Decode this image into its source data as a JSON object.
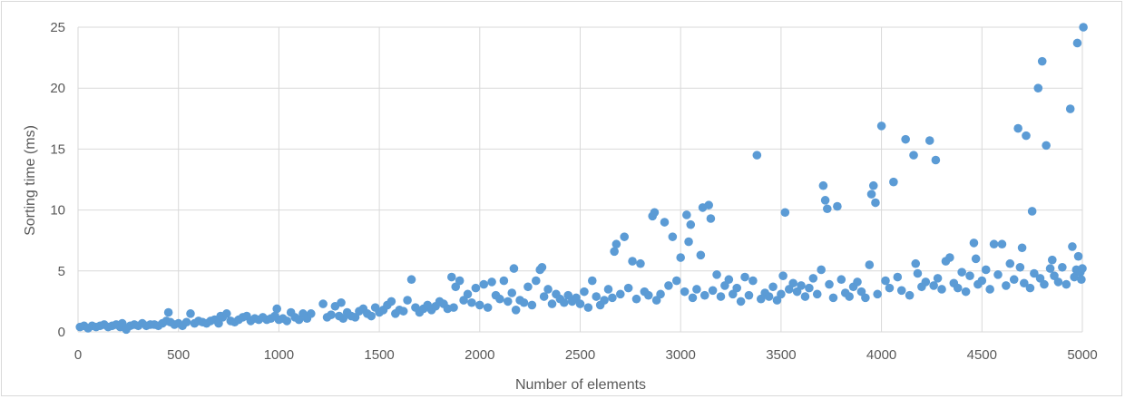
{
  "chart_data": {
    "type": "scatter",
    "title": "",
    "xlabel": "Number of elements",
    "ylabel": "Sorting time (ms)",
    "xlim": [
      0,
      5000
    ],
    "ylim": [
      0,
      25
    ],
    "x_ticks": [
      0,
      500,
      1000,
      1500,
      2000,
      2500,
      3000,
      3500,
      4000,
      4500,
      5000
    ],
    "y_ticks": [
      0,
      5,
      10,
      15,
      20,
      25
    ],
    "x_tick_labels": [
      "0",
      "500",
      "1000",
      "1500",
      "2000",
      "2500",
      "3000",
      "3500",
      "4000",
      "4500",
      "5000"
    ],
    "y_tick_labels": [
      "0",
      "5",
      "10",
      "15",
      "20",
      "25"
    ],
    "grid": true,
    "legend": "none",
    "marker_color": "#5b9bd5",
    "grid_color": "#d9d9d9",
    "series": [
      {
        "points": [
          [
            10,
            0.4
          ],
          [
            30,
            0.5
          ],
          [
            50,
            0.3
          ],
          [
            70,
            0.5
          ],
          [
            90,
            0.4
          ],
          [
            110,
            0.5
          ],
          [
            130,
            0.6
          ],
          [
            150,
            0.4
          ],
          [
            170,
            0.5
          ],
          [
            190,
            0.6
          ],
          [
            210,
            0.4
          ],
          [
            220,
            0.7
          ],
          [
            240,
            0.2
          ],
          [
            260,
            0.5
          ],
          [
            280,
            0.6
          ],
          [
            300,
            0.5
          ],
          [
            320,
            0.7
          ],
          [
            340,
            0.5
          ],
          [
            360,
            0.6
          ],
          [
            380,
            0.6
          ],
          [
            400,
            0.5
          ],
          [
            420,
            0.7
          ],
          [
            440,
            0.9
          ],
          [
            450,
            1.6
          ],
          [
            460,
            0.8
          ],
          [
            480,
            0.6
          ],
          [
            500,
            0.7
          ],
          [
            520,
            0.5
          ],
          [
            540,
            0.8
          ],
          [
            560,
            1.5
          ],
          [
            580,
            0.7
          ],
          [
            600,
            0.9
          ],
          [
            620,
            0.8
          ],
          [
            640,
            0.7
          ],
          [
            660,
            0.9
          ],
          [
            680,
            1.0
          ],
          [
            700,
            0.7
          ],
          [
            710,
            1.3
          ],
          [
            720,
            1.2
          ],
          [
            740,
            1.5
          ],
          [
            760,
            0.9
          ],
          [
            780,
            0.8
          ],
          [
            800,
            1.0
          ],
          [
            820,
            1.2
          ],
          [
            840,
            1.3
          ],
          [
            860,
            0.9
          ],
          [
            880,
            1.1
          ],
          [
            900,
            1.0
          ],
          [
            920,
            1.2
          ],
          [
            940,
            1.0
          ],
          [
            960,
            1.1
          ],
          [
            980,
            1.3
          ],
          [
            990,
            1.9
          ],
          [
            1000,
            1.0
          ],
          [
            1020,
            1.1
          ],
          [
            1040,
            0.9
          ],
          [
            1060,
            1.6
          ],
          [
            1080,
            1.2
          ],
          [
            1100,
            1.0
          ],
          [
            1120,
            1.5
          ],
          [
            1140,
            1.1
          ],
          [
            1160,
            1.5
          ],
          [
            1220,
            2.3
          ],
          [
            1240,
            1.2
          ],
          [
            1260,
            1.4
          ],
          [
            1280,
            2.1
          ],
          [
            1300,
            1.3
          ],
          [
            1310,
            2.4
          ],
          [
            1320,
            1.1
          ],
          [
            1340,
            1.6
          ],
          [
            1360,
            1.3
          ],
          [
            1380,
            1.2
          ],
          [
            1400,
            1.7
          ],
          [
            1420,
            1.9
          ],
          [
            1440,
            1.5
          ],
          [
            1460,
            1.3
          ],
          [
            1480,
            2.0
          ],
          [
            1500,
            1.6
          ],
          [
            1520,
            1.8
          ],
          [
            1540,
            2.2
          ],
          [
            1560,
            2.5
          ],
          [
            1580,
            1.5
          ],
          [
            1600,
            1.8
          ],
          [
            1620,
            1.7
          ],
          [
            1640,
            2.6
          ],
          [
            1660,
            4.3
          ],
          [
            1680,
            2.0
          ],
          [
            1700,
            1.6
          ],
          [
            1720,
            1.9
          ],
          [
            1740,
            2.2
          ],
          [
            1760,
            1.8
          ],
          [
            1780,
            2.1
          ],
          [
            1800,
            2.5
          ],
          [
            1820,
            2.3
          ],
          [
            1840,
            1.9
          ],
          [
            1860,
            4.5
          ],
          [
            1870,
            2.0
          ],
          [
            1880,
            3.7
          ],
          [
            1900,
            4.2
          ],
          [
            1920,
            2.6
          ],
          [
            1940,
            3.1
          ],
          [
            1960,
            2.4
          ],
          [
            1980,
            3.6
          ],
          [
            2000,
            2.2
          ],
          [
            2020,
            3.9
          ],
          [
            2040,
            2.0
          ],
          [
            2060,
            4.1
          ],
          [
            2080,
            3.0
          ],
          [
            2100,
            2.7
          ],
          [
            2120,
            4.2
          ],
          [
            2140,
            2.5
          ],
          [
            2160,
            3.2
          ],
          [
            2170,
            5.2
          ],
          [
            2180,
            1.8
          ],
          [
            2200,
            2.6
          ],
          [
            2220,
            2.4
          ],
          [
            2240,
            3.7
          ],
          [
            2260,
            2.2
          ],
          [
            2280,
            4.2
          ],
          [
            2300,
            5.1
          ],
          [
            2310,
            5.3
          ],
          [
            2320,
            2.9
          ],
          [
            2340,
            3.5
          ],
          [
            2360,
            2.3
          ],
          [
            2380,
            3.1
          ],
          [
            2400,
            2.7
          ],
          [
            2420,
            2.4
          ],
          [
            2440,
            3.0
          ],
          [
            2460,
            2.5
          ],
          [
            2480,
            2.8
          ],
          [
            2500,
            2.3
          ],
          [
            2520,
            3.3
          ],
          [
            2540,
            2.0
          ],
          [
            2560,
            4.2
          ],
          [
            2580,
            2.9
          ],
          [
            2600,
            2.2
          ],
          [
            2620,
            2.6
          ],
          [
            2640,
            3.5
          ],
          [
            2660,
            2.8
          ],
          [
            2670,
            6.6
          ],
          [
            2680,
            7.2
          ],
          [
            2700,
            3.1
          ],
          [
            2720,
            7.8
          ],
          [
            2740,
            3.6
          ],
          [
            2760,
            5.8
          ],
          [
            2780,
            2.7
          ],
          [
            2800,
            5.6
          ],
          [
            2820,
            3.3
          ],
          [
            2840,
            3.0
          ],
          [
            2860,
            9.5
          ],
          [
            2870,
            9.8
          ],
          [
            2880,
            2.6
          ],
          [
            2900,
            3.1
          ],
          [
            2920,
            9.0
          ],
          [
            2940,
            3.8
          ],
          [
            2960,
            7.8
          ],
          [
            2980,
            4.2
          ],
          [
            3000,
            6.1
          ],
          [
            3020,
            3.3
          ],
          [
            3030,
            9.6
          ],
          [
            3040,
            7.4
          ],
          [
            3050,
            8.8
          ],
          [
            3060,
            2.8
          ],
          [
            3080,
            3.5
          ],
          [
            3100,
            6.3
          ],
          [
            3110,
            10.2
          ],
          [
            3120,
            3.0
          ],
          [
            3140,
            10.4
          ],
          [
            3150,
            9.3
          ],
          [
            3160,
            3.4
          ],
          [
            3180,
            4.7
          ],
          [
            3200,
            2.9
          ],
          [
            3220,
            3.8
          ],
          [
            3240,
            4.3
          ],
          [
            3260,
            3.1
          ],
          [
            3280,
            3.6
          ],
          [
            3300,
            2.5
          ],
          [
            3320,
            4.5
          ],
          [
            3340,
            3.0
          ],
          [
            3360,
            4.2
          ],
          [
            3380,
            14.5
          ],
          [
            3400,
            2.7
          ],
          [
            3420,
            3.2
          ],
          [
            3440,
            2.9
          ],
          [
            3460,
            3.7
          ],
          [
            3480,
            2.6
          ],
          [
            3500,
            3.1
          ],
          [
            3510,
            4.6
          ],
          [
            3520,
            9.8
          ],
          [
            3540,
            3.5
          ],
          [
            3560,
            4.0
          ],
          [
            3580,
            3.3
          ],
          [
            3600,
            3.8
          ],
          [
            3620,
            2.9
          ],
          [
            3640,
            3.6
          ],
          [
            3660,
            4.4
          ],
          [
            3680,
            3.1
          ],
          [
            3700,
            5.1
          ],
          [
            3710,
            12.0
          ],
          [
            3720,
            10.8
          ],
          [
            3730,
            10.1
          ],
          [
            3740,
            3.9
          ],
          [
            3760,
            2.8
          ],
          [
            3780,
            10.3
          ],
          [
            3800,
            4.3
          ],
          [
            3820,
            3.2
          ],
          [
            3840,
            2.9
          ],
          [
            3860,
            3.7
          ],
          [
            3880,
            4.1
          ],
          [
            3900,
            3.3
          ],
          [
            3920,
            2.8
          ],
          [
            3940,
            5.5
          ],
          [
            3950,
            11.3
          ],
          [
            3960,
            12.0
          ],
          [
            3970,
            10.6
          ],
          [
            3980,
            3.1
          ],
          [
            4000,
            16.9
          ],
          [
            4020,
            4.2
          ],
          [
            4040,
            3.6
          ],
          [
            4060,
            12.3
          ],
          [
            4080,
            4.5
          ],
          [
            4100,
            3.4
          ],
          [
            4120,
            15.8
          ],
          [
            4140,
            3.0
          ],
          [
            4160,
            14.5
          ],
          [
            4170,
            5.6
          ],
          [
            4180,
            4.8
          ],
          [
            4200,
            3.7
          ],
          [
            4220,
            4.1
          ],
          [
            4240,
            15.7
          ],
          [
            4260,
            3.8
          ],
          [
            4270,
            14.1
          ],
          [
            4280,
            4.4
          ],
          [
            4300,
            3.5
          ],
          [
            4320,
            5.8
          ],
          [
            4340,
            6.1
          ],
          [
            4360,
            4.0
          ],
          [
            4380,
            3.6
          ],
          [
            4400,
            4.9
          ],
          [
            4420,
            3.3
          ],
          [
            4440,
            4.6
          ],
          [
            4460,
            7.3
          ],
          [
            4470,
            6.0
          ],
          [
            4480,
            3.9
          ],
          [
            4500,
            4.2
          ],
          [
            4520,
            5.1
          ],
          [
            4540,
            3.5
          ],
          [
            4560,
            7.2
          ],
          [
            4580,
            4.7
          ],
          [
            4600,
            7.2
          ],
          [
            4620,
            3.8
          ],
          [
            4640,
            5.6
          ],
          [
            4660,
            4.3
          ],
          [
            4680,
            16.7
          ],
          [
            4690,
            5.3
          ],
          [
            4700,
            6.9
          ],
          [
            4710,
            4.0
          ],
          [
            4720,
            16.1
          ],
          [
            4740,
            3.6
          ],
          [
            4750,
            9.9
          ],
          [
            4760,
            4.8
          ],
          [
            4780,
            20.0
          ],
          [
            4790,
            4.4
          ],
          [
            4800,
            22.2
          ],
          [
            4810,
            3.9
          ],
          [
            4820,
            15.3
          ],
          [
            4840,
            5.2
          ],
          [
            4850,
            5.9
          ],
          [
            4860,
            4.6
          ],
          [
            4880,
            4.1
          ],
          [
            4900,
            5.3
          ],
          [
            4920,
            3.9
          ],
          [
            4940,
            18.3
          ],
          [
            4950,
            7.0
          ],
          [
            4960,
            4.5
          ],
          [
            4970,
            5.1
          ],
          [
            4975,
            23.7
          ],
          [
            4980,
            6.2
          ],
          [
            4990,
            4.9
          ],
          [
            5000,
            5.2
          ],
          [
            5005,
            25.0
          ],
          [
            4995,
            4.3
          ]
        ]
      }
    ]
  }
}
